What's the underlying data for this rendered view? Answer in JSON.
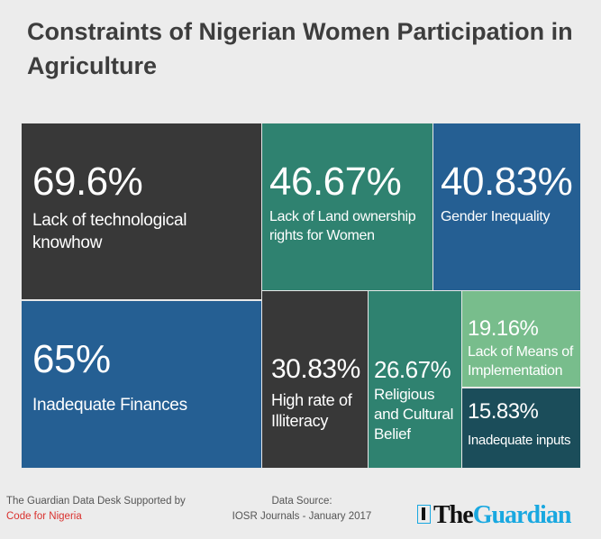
{
  "title": "Constraints of Nigerian Women Participation in Agriculture",
  "chart_data": {
    "type": "treemap",
    "title": "Constraints of Nigerian Women Participation in Agriculture",
    "unit": "%",
    "items": [
      {
        "label": "Lack of technological knowhow",
        "value": 69.6,
        "value_text": "69.6%",
        "color": "#383838"
      },
      {
        "label": "Lack of Land ownership rights for Women",
        "value": 46.67,
        "value_text": "46.67%",
        "color": "#2f8270"
      },
      {
        "label": "Gender Inequality",
        "value": 40.83,
        "value_text": "40.83%",
        "color": "#255f93"
      },
      {
        "label": "Inadequate Finances",
        "value": 65,
        "value_text": "65%",
        "color": "#255f93"
      },
      {
        "label": "High rate of Illiteracy",
        "value": 30.83,
        "value_text": "30.83%",
        "color": "#383838"
      },
      {
        "label": "Religious and Cultural Belief",
        "value": 26.67,
        "value_text": "26.67%",
        "color": "#2f8270"
      },
      {
        "label": "Lack of Means of Implementation",
        "value": 19.16,
        "value_text": "19.16%",
        "color": "#78bd8c"
      },
      {
        "label": "Inadequate inputs",
        "value": 15.83,
        "value_text": "15.83%",
        "color": "#1b4d5a"
      }
    ]
  },
  "footer": {
    "credit_line1": "The Guardian Data Desk Supported by",
    "credit_line2": "Code for Nigeria",
    "source_line1": "Data Source:",
    "source_line2": "IOSR Journals - January 2017",
    "logo_the": "The",
    "logo_guardian": "Guardian"
  }
}
